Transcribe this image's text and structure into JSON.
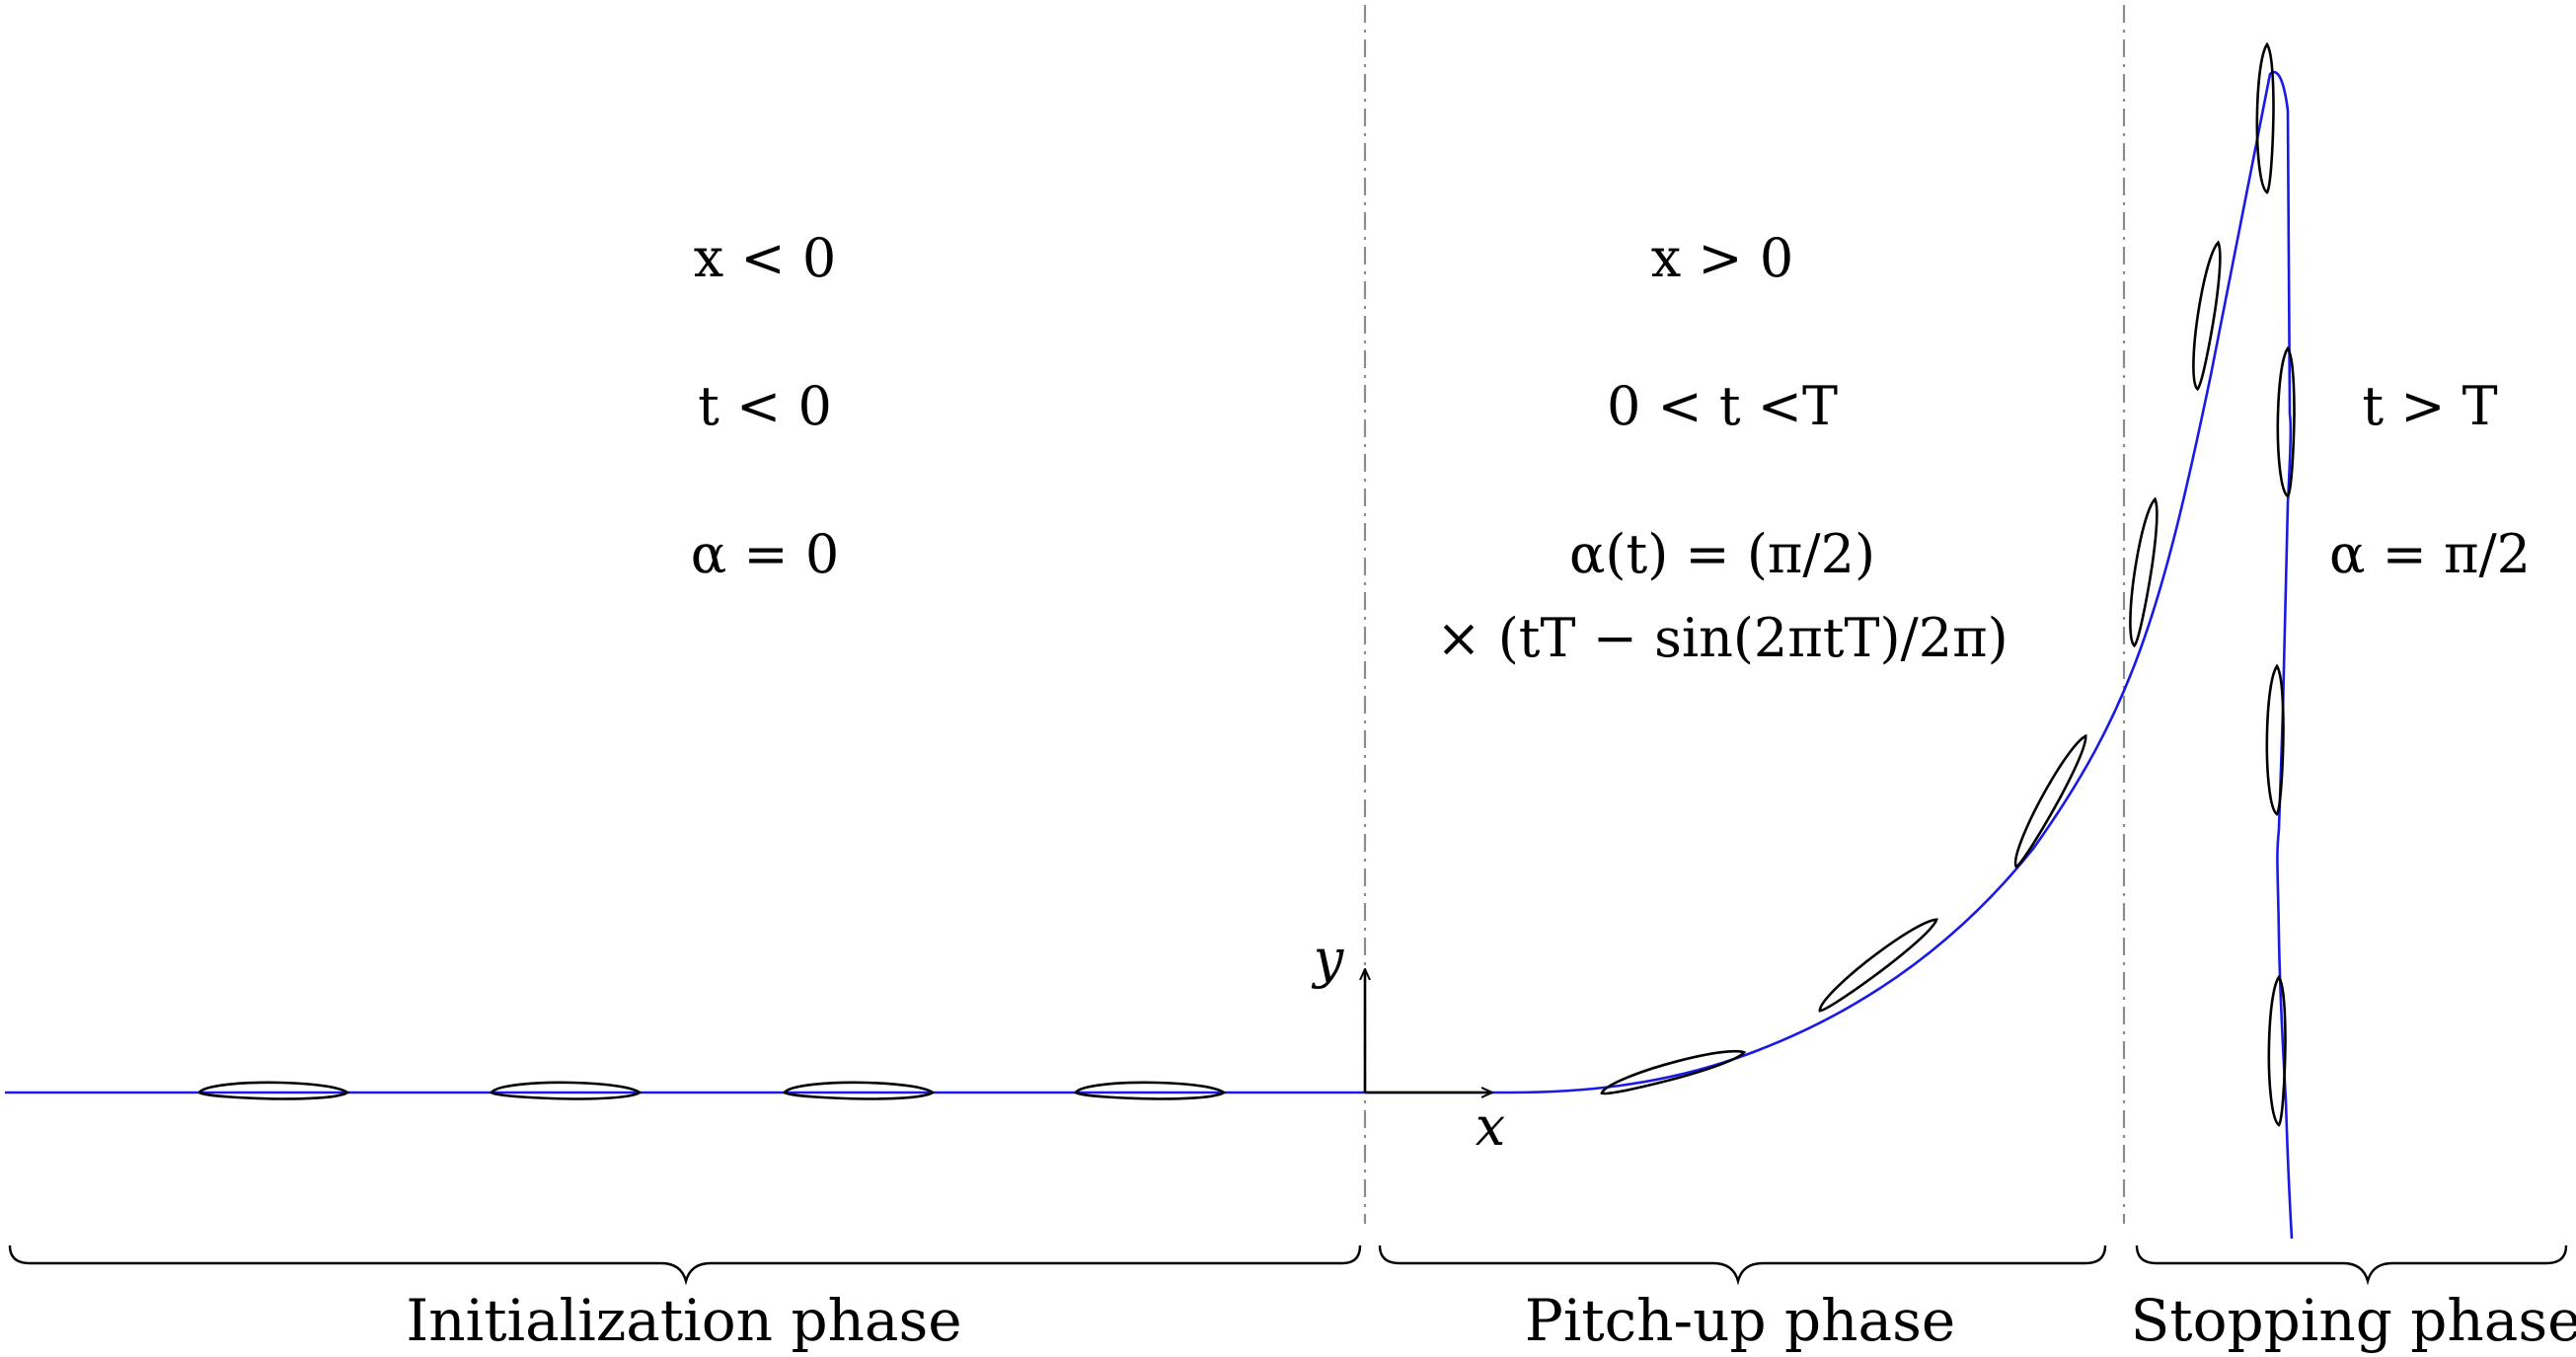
{
  "phases": [
    {
      "id": "initialization",
      "label": "Initialization phase",
      "conditions": [
        "x < 0",
        "t < 0",
        "α = 0"
      ]
    },
    {
      "id": "pitch-up",
      "label": "Pitch-up phase",
      "conditions": [
        "x > 0",
        "0 < t <T",
        "α(t) = (π/2)",
        "× (tT − sin(2πtT)/2π)"
      ]
    },
    {
      "id": "stopping",
      "label": "Stopping phase",
      "conditions": [
        "t > T",
        "α = π/2"
      ]
    }
  ],
  "axes": {
    "x_label": "x",
    "y_label": "y"
  },
  "colors": {
    "trajectory": "#1a1ae6",
    "airfoil": "#000000",
    "divider": "#8c8c8c"
  }
}
